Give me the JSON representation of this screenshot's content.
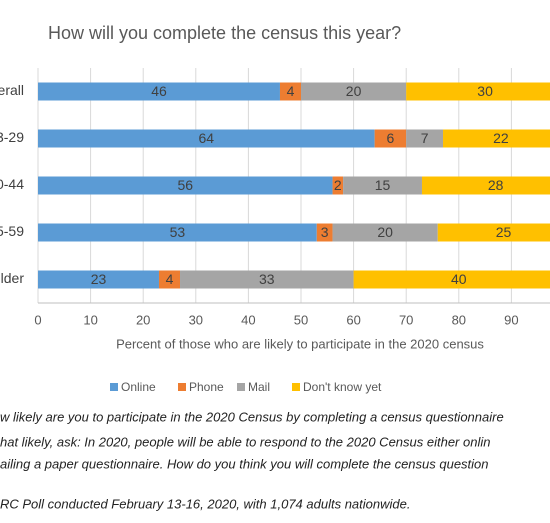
{
  "chart_data": {
    "type": "stacked-bar-horizontal",
    "title": "How will you complete the census this year?",
    "x_label": "Percent of those who are likely to participate in the 2020 census",
    "categories": [
      "erall",
      "3-29",
      "0-44",
      "5-59",
      "lder"
    ],
    "series": [
      {
        "name": "Online",
        "color": "#5b9bd5",
        "values": [
          46,
          64,
          56,
          53,
          23
        ]
      },
      {
        "name": "Phone",
        "color": "#ed7d31",
        "values": [
          4,
          6,
          2,
          3,
          4
        ]
      },
      {
        "name": "Mail",
        "color": "#a5a5a5",
        "values": [
          20,
          7,
          15,
          20,
          33
        ]
      },
      {
        "name": "Don't know yet",
        "color": "#ffc000",
        "values": [
          30,
          22,
          28,
          25,
          40
        ]
      }
    ],
    "xlim": [
      0,
      100
    ],
    "xticks": [
      0,
      10,
      20,
      30,
      40,
      50,
      60,
      70,
      80,
      90
    ],
    "grid": true,
    "legend": "bottom",
    "notes": [
      "w likely are you to participate in the 2020 Census by completing a census questionnaire",
      "hat likely, ask: In 2020, people will be able to respond to the 2020 Census either onlin",
      "ailing a paper questionnaire. How do you think you will complete the census question",
      "RC Poll conducted February 13-16, 2020, with 1,074 adults nationwide."
    ]
  }
}
